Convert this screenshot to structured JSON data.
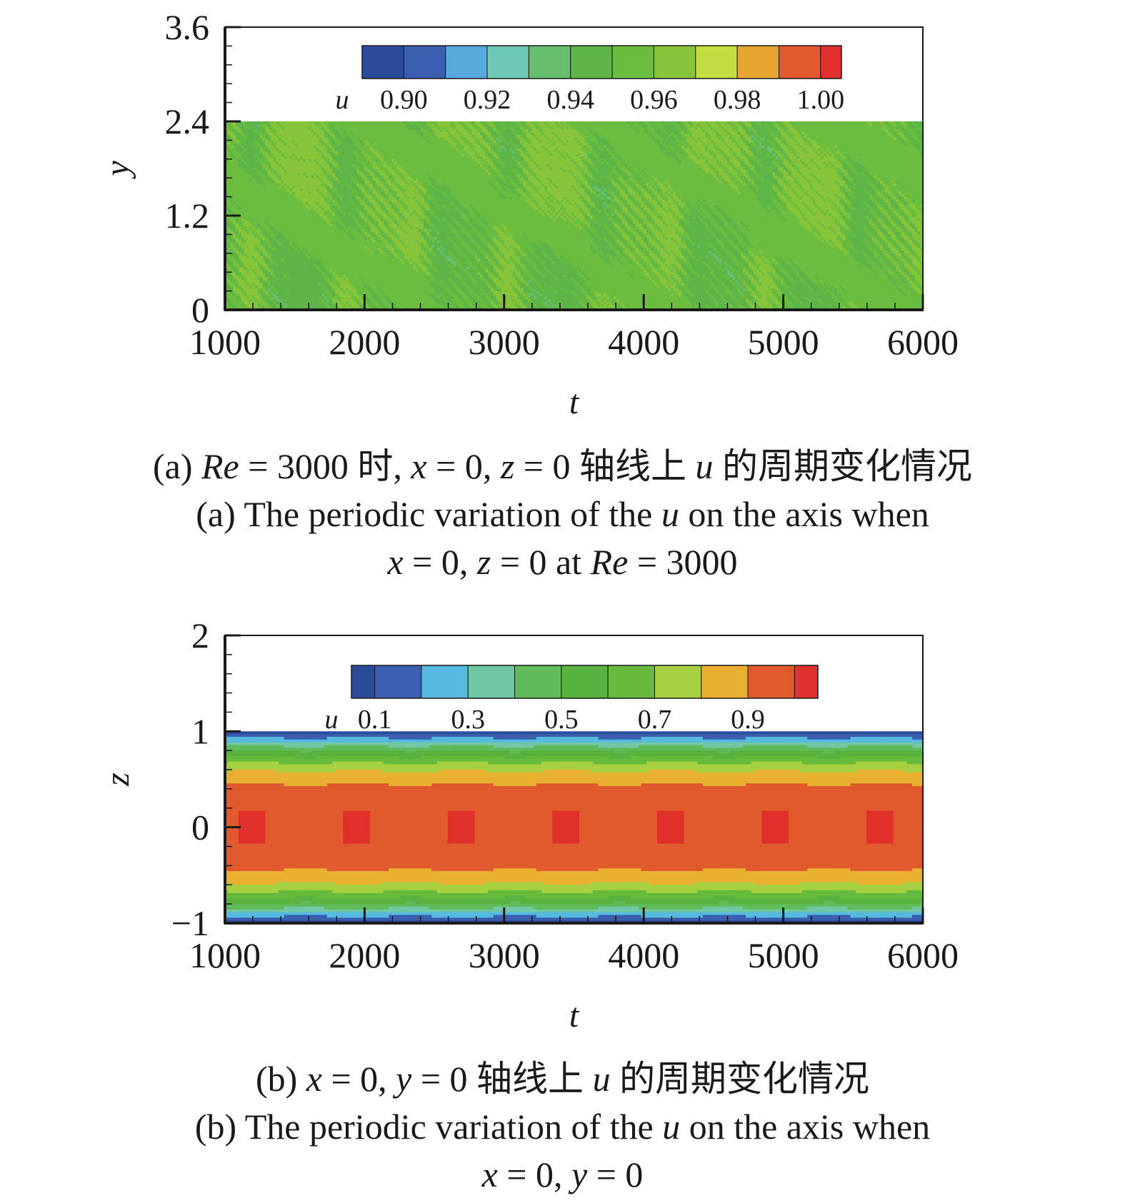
{
  "chart_data": [
    {
      "id": "a",
      "type": "heatmap",
      "xlabel": "t",
      "ylabel": "y",
      "xlim": [
        1000,
        6000
      ],
      "ylim": [
        0,
        3.6
      ],
      "data_ylim": [
        0,
        2.4
      ],
      "xticks": [
        1000,
        2000,
        3000,
        4000,
        5000,
        6000
      ],
      "xtick_labels": [
        "1000",
        "2000",
        "3000",
        "4000",
        "5000",
        "6000"
      ],
      "yticks": [
        0,
        1.2,
        2.4,
        3.6
      ],
      "ytick_labels": [
        "0",
        "1.2",
        "2.4",
        "3.6"
      ],
      "colorbar": {
        "variable": "u",
        "levels": [
          0.89,
          0.9,
          0.91,
          0.92,
          0.93,
          0.94,
          0.95,
          0.96,
          0.97,
          0.98,
          0.99,
          1.0,
          1.005
        ],
        "colors": [
          "#2b4c9b",
          "#3b5eb0",
          "#56aadc",
          "#6fc7b8",
          "#66bf6e",
          "#5cb546",
          "#6bbd3f",
          "#87c43a",
          "#c4dd41",
          "#e6a430",
          "#e15a2e",
          "#e0302b"
        ],
        "tick_values": [
          0.9,
          0.92,
          0.94,
          0.96,
          0.98,
          1.0
        ],
        "tick_labels": [
          "0.90",
          "0.92",
          "0.94",
          "0.96",
          "0.98",
          "1.00"
        ],
        "placement": "top-center"
      },
      "field": {
        "description_values": "u mostly 0.94-0.97 with periodic oscillation",
        "base": 0.954,
        "amplitude": 0.018,
        "period_t": 740,
        "wave_k_y": 12.0
      },
      "caption_lines": [
        "(a) Re = 3000 时, x = 0, z = 0 轴线上 u 的周期变化情况",
        "(a) The periodic variation of the u on the axis when",
        "x = 0, z = 0 at Re = 3000"
      ]
    },
    {
      "id": "b",
      "type": "heatmap",
      "xlabel": "t",
      "ylabel": "z",
      "xlim": [
        1000,
        6000
      ],
      "ylim": [
        -1,
        2
      ],
      "data_ylim": [
        -1,
        1
      ],
      "xticks": [
        1000,
        2000,
        3000,
        4000,
        5000,
        6000
      ],
      "xtick_labels": [
        "1000",
        "2000",
        "3000",
        "4000",
        "5000",
        "6000"
      ],
      "yticks": [
        -1,
        0,
        1,
        2
      ],
      "ytick_labels": [
        "−1",
        "0",
        "1",
        "2"
      ],
      "colorbar": {
        "variable": "u",
        "levels": [
          0.05,
          0.1,
          0.2,
          0.3,
          0.4,
          0.5,
          0.6,
          0.7,
          0.8,
          0.9,
          1.0,
          1.05
        ],
        "colors": [
          "#2b4c9b",
          "#3b5eb0",
          "#56b9e0",
          "#6fc7a4",
          "#61bb5a",
          "#58b23f",
          "#66bb3d",
          "#a6d040",
          "#e8b02e",
          "#e15a2e",
          "#e0302b"
        ],
        "tick_values": [
          0.1,
          0.3,
          0.5,
          0.7,
          0.9
        ],
        "tick_labels": [
          "0.1",
          "0.3",
          "0.5",
          "0.7",
          "0.9"
        ],
        "placement": "top-center"
      },
      "field": {
        "peak_t": [
          1200,
          1950,
          2700,
          3450,
          4200,
          4950,
          5700
        ],
        "period_t": 750,
        "peak_u": 1.02
      },
      "caption_lines": [
        "(b) x = 0, y = 0 轴线上 u 的周期变化情况",
        "(b) The periodic variation of the u on the axis when",
        "x = 0, y = 0"
      ]
    }
  ],
  "captions": {
    "a": {
      "line1_pre": "(a) ",
      "line1_re": "Re",
      "line1_mid": " = 3000 时, ",
      "line1_x": "x",
      "line1_eq1": " = 0, ",
      "line1_z": "z",
      "line1_eq2": " = 0 轴线上 ",
      "line1_u": "u",
      "line1_post": " 的周期变化情况",
      "line2_pre": "(a) The periodic variation of the ",
      "line2_u": "u",
      "line2_post": " on the axis when",
      "line3_x": "x",
      "line3_eq1": " = 0, ",
      "line3_z": "z",
      "line3_eq2": " = 0 at ",
      "line3_re": "Re",
      "line3_post": " = 3000"
    },
    "b": {
      "line1_pre": "(b) ",
      "line1_x": "x",
      "line1_eq1": " = 0, ",
      "line1_y": "y",
      "line1_eq2": " = 0 轴线上 ",
      "line1_u": "u",
      "line1_post": " 的周期变化情况",
      "line2_pre": "(b) The periodic variation of the ",
      "line2_u": "u",
      "line2_post": " on the axis when",
      "line3_x": "x",
      "line3_eq1": " = 0, ",
      "line3_y": "y",
      "line3_eq2": " = 0"
    }
  }
}
